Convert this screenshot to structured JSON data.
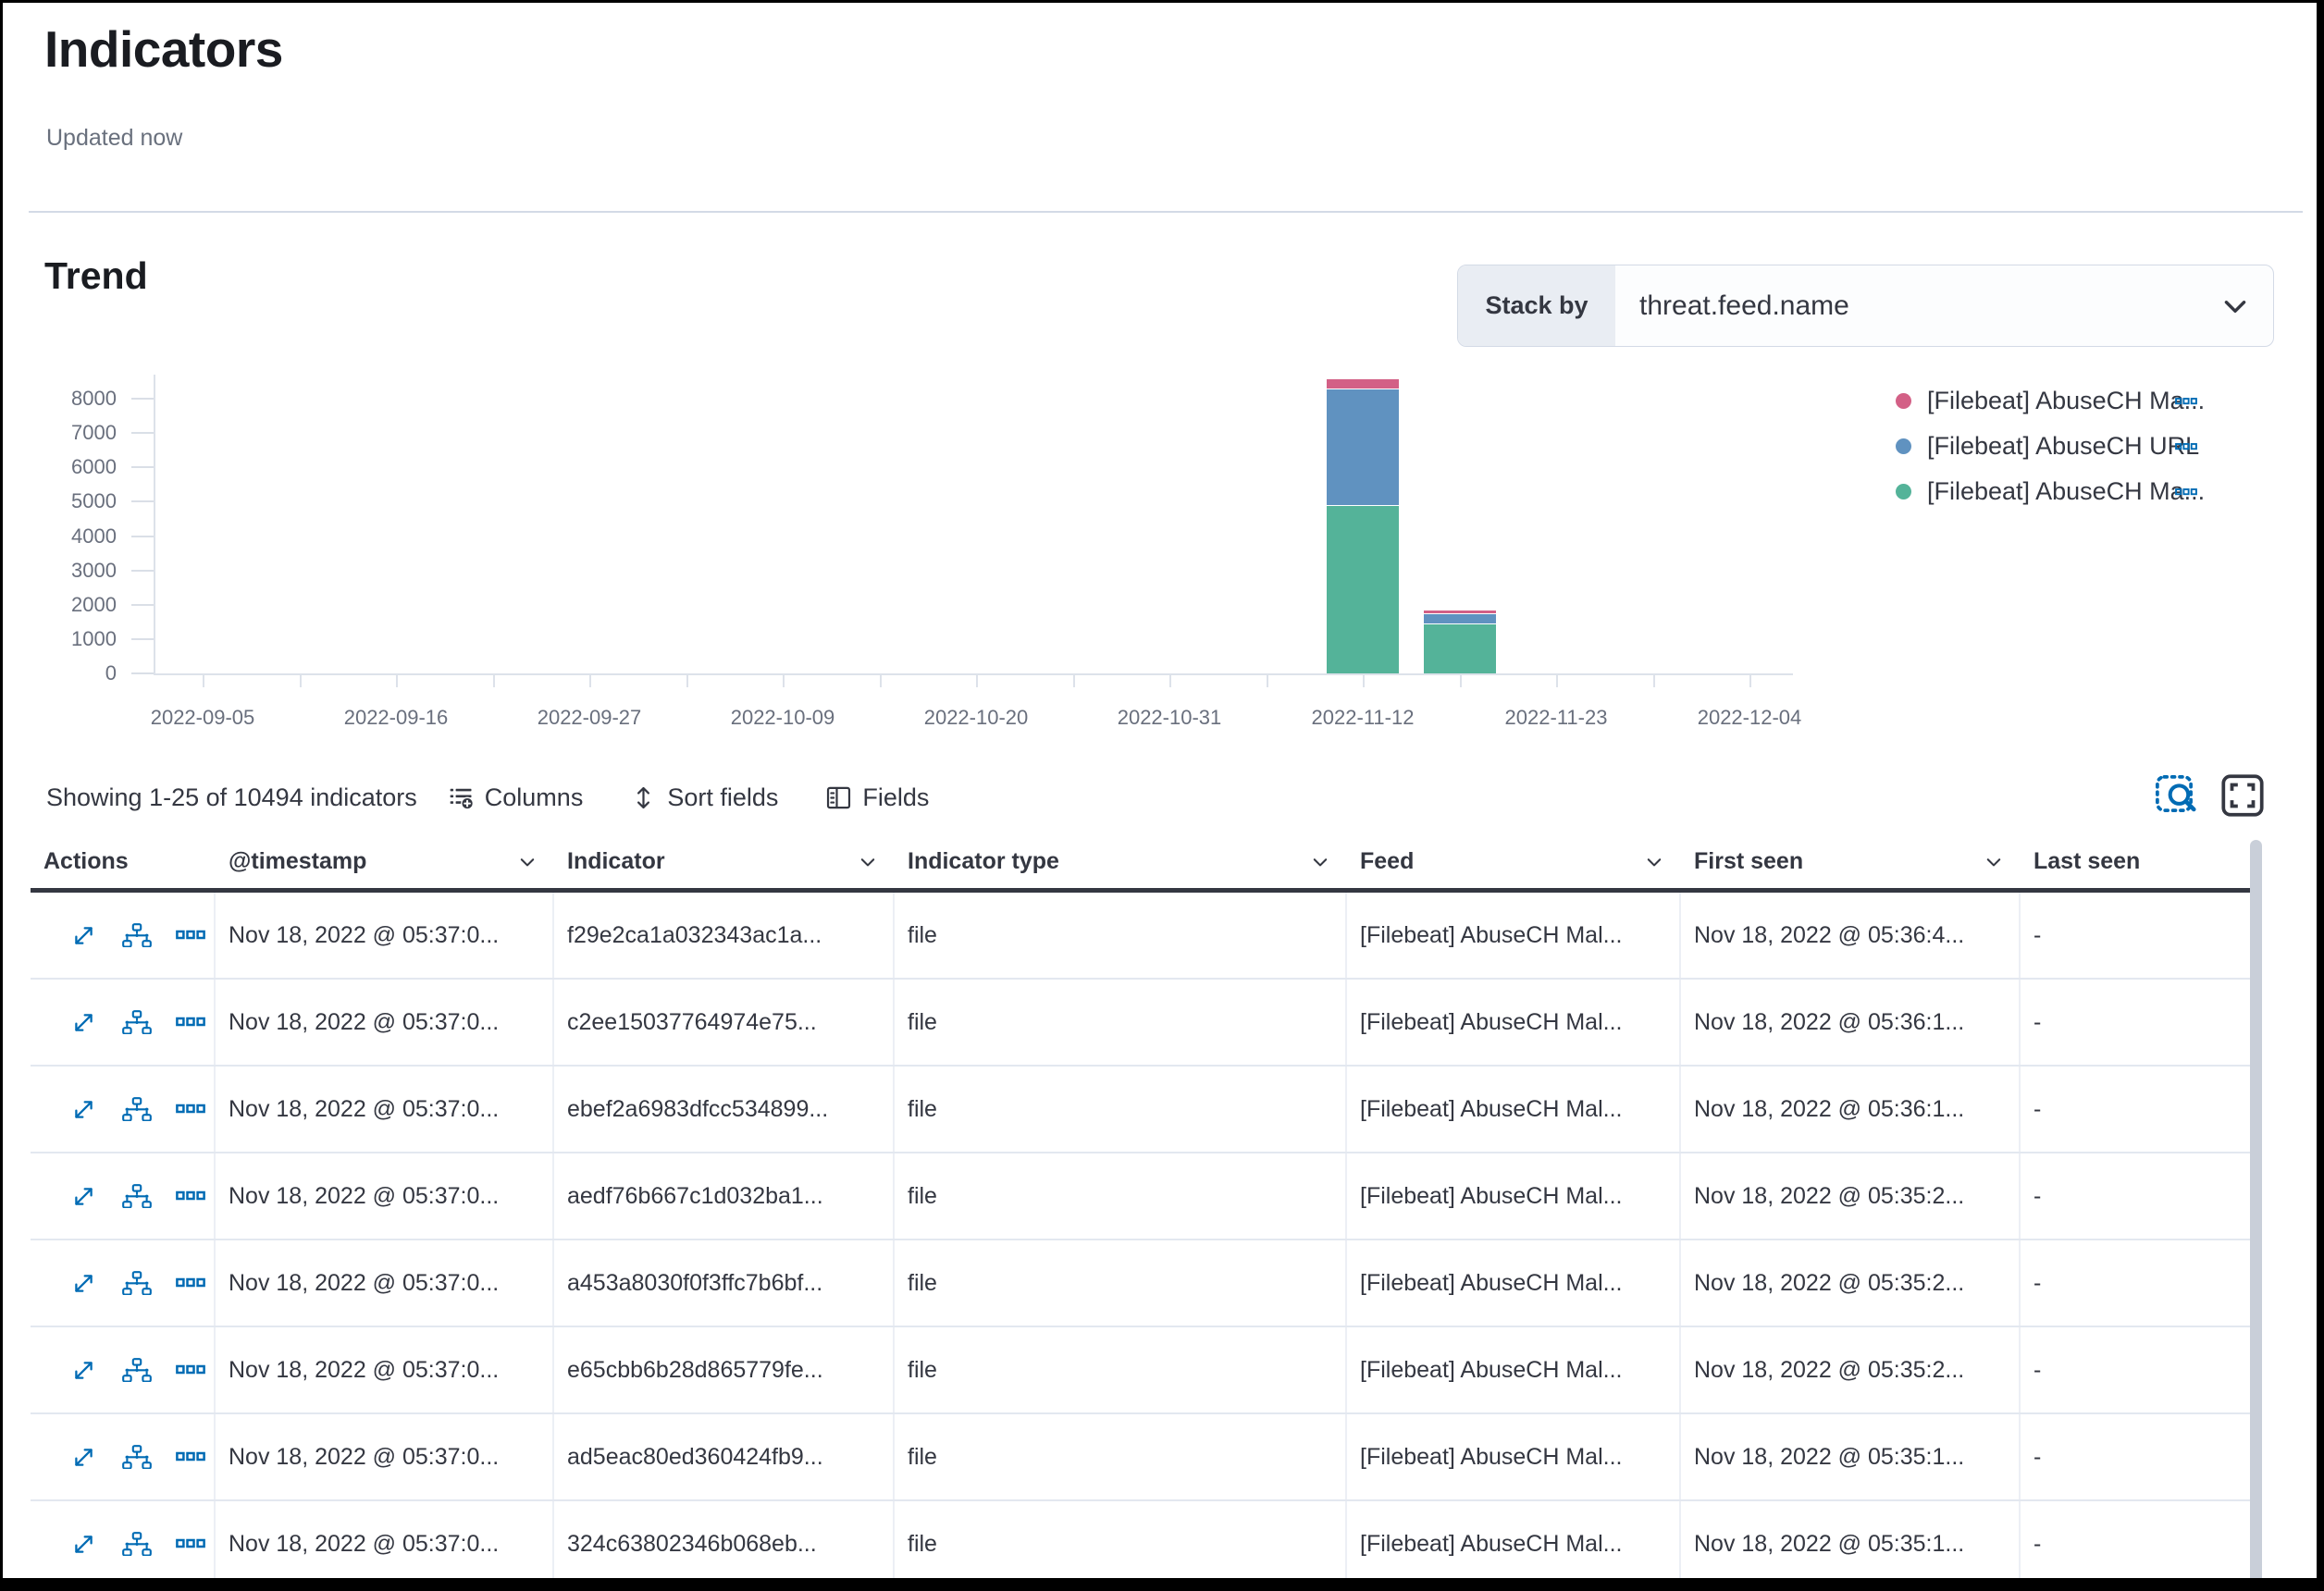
{
  "page": {
    "title": "Indicators",
    "updated": "Updated now"
  },
  "trend": {
    "heading": "Trend",
    "stack_by_label": "Stack by",
    "stack_by_value": "threat.feed.name"
  },
  "chart_data": {
    "type": "bar",
    "stacked": true,
    "title": "Trend",
    "xlabel": "",
    "ylabel": "",
    "grid": false,
    "legend_position": "right",
    "ylim": [
      0,
      8600
    ],
    "y_ticks": [
      8000,
      7000,
      6000,
      5000,
      4000,
      3000,
      2000,
      1000,
      0
    ],
    "x_tick_labels": [
      "2022-09-05",
      "2022-09-16",
      "2022-09-27",
      "2022-10-09",
      "2022-10-20",
      "2022-10-31",
      "2022-11-12",
      "2022-11-23",
      "2022-12-04"
    ],
    "series": [
      {
        "label": "[Filebeat] AbuseCH Ma...",
        "color": "#d36086"
      },
      {
        "label": "[Filebeat] AbuseCH URL",
        "color": "#6092c0"
      },
      {
        "label": "[Filebeat] AbuseCH Ma...",
        "color": "#54b399"
      }
    ],
    "bars": [
      {
        "x_pos": 6,
        "x_label_ref": "2022-11-12",
        "segments": [
          {
            "series": 2,
            "value": 4900
          },
          {
            "series": 1,
            "value": 3400
          },
          {
            "series": 0,
            "value": 300
          }
        ]
      },
      {
        "x_pos": 6.5,
        "segments": [
          {
            "series": 2,
            "value": 1450
          },
          {
            "series": 1,
            "value": 300
          },
          {
            "series": 0,
            "value": 120
          }
        ]
      }
    ]
  },
  "toolbar": {
    "summary": "Showing 1-25 of 10494 indicators",
    "columns_label": "Columns",
    "sort_fields_label": "Sort fields",
    "fields_label": "Fields"
  },
  "table": {
    "columns": [
      {
        "label": "Actions",
        "sortable": false
      },
      {
        "label": "@timestamp",
        "sortable": true
      },
      {
        "label": "Indicator",
        "sortable": true
      },
      {
        "label": "Indicator type",
        "sortable": true
      },
      {
        "label": "Feed",
        "sortable": true
      },
      {
        "label": "First seen",
        "sortable": true
      },
      {
        "label": "Last seen",
        "sortable": false
      }
    ],
    "rows": [
      {
        "timestamp": "Nov 18, 2022 @ 05:37:0...",
        "indicator": "f29e2ca1a032343ac1a...",
        "indicator_type": "file",
        "feed": "[Filebeat] AbuseCH Mal...",
        "first_seen": "Nov 18, 2022 @ 05:36:4...",
        "last_seen": "-"
      },
      {
        "timestamp": "Nov 18, 2022 @ 05:37:0...",
        "indicator": "c2ee15037764974e75...",
        "indicator_type": "file",
        "feed": "[Filebeat] AbuseCH Mal...",
        "first_seen": "Nov 18, 2022 @ 05:36:1...",
        "last_seen": "-"
      },
      {
        "timestamp": "Nov 18, 2022 @ 05:37:0...",
        "indicator": "ebef2a6983dfcc534899...",
        "indicator_type": "file",
        "feed": "[Filebeat] AbuseCH Mal...",
        "first_seen": "Nov 18, 2022 @ 05:36:1...",
        "last_seen": "-"
      },
      {
        "timestamp": "Nov 18, 2022 @ 05:37:0...",
        "indicator": "aedf76b667c1d032ba1...",
        "indicator_type": "file",
        "feed": "[Filebeat] AbuseCH Mal...",
        "first_seen": "Nov 18, 2022 @ 05:35:2...",
        "last_seen": "-"
      },
      {
        "timestamp": "Nov 18, 2022 @ 05:37:0...",
        "indicator": "a453a8030f0f3ffc7b6bf...",
        "indicator_type": "file",
        "feed": "[Filebeat] AbuseCH Mal...",
        "first_seen": "Nov 18, 2022 @ 05:35:2...",
        "last_seen": "-"
      },
      {
        "timestamp": "Nov 18, 2022 @ 05:37:0...",
        "indicator": "e65cbb6b28d865779fe...",
        "indicator_type": "file",
        "feed": "[Filebeat] AbuseCH Mal...",
        "first_seen": "Nov 18, 2022 @ 05:35:2...",
        "last_seen": "-"
      },
      {
        "timestamp": "Nov 18, 2022 @ 05:37:0...",
        "indicator": "ad5eac80ed360424fb9...",
        "indicator_type": "file",
        "feed": "[Filebeat] AbuseCH Mal...",
        "first_seen": "Nov 18, 2022 @ 05:35:1...",
        "last_seen": "-"
      },
      {
        "timestamp": "Nov 18, 2022 @ 05:37:0...",
        "indicator": "324c63802346b068eb...",
        "indicator_type": "file",
        "feed": "[Filebeat] AbuseCH Mal...",
        "first_seen": "Nov 18, 2022 @ 05:35:1...",
        "last_seen": "-"
      }
    ]
  },
  "icons": {
    "stack_by": "chevron-down",
    "toolbar": [
      "columns-list-add",
      "sort-double-arrow",
      "fields-panel",
      "inspect-magnifier",
      "fullscreen-brackets"
    ],
    "row_actions": [
      "expand-flyout",
      "investigate-in-timeline",
      "more-actions"
    ],
    "legend_item_action": "boxes-horizontal"
  },
  "colors": {
    "series_pink": "#d36086",
    "series_blue": "#6092c0",
    "series_green": "#54b399",
    "icon_blue": "#006bb4",
    "text": "#343741",
    "subdued": "#69707d",
    "header_rule": "#343741",
    "divider": "#d3dae6"
  }
}
